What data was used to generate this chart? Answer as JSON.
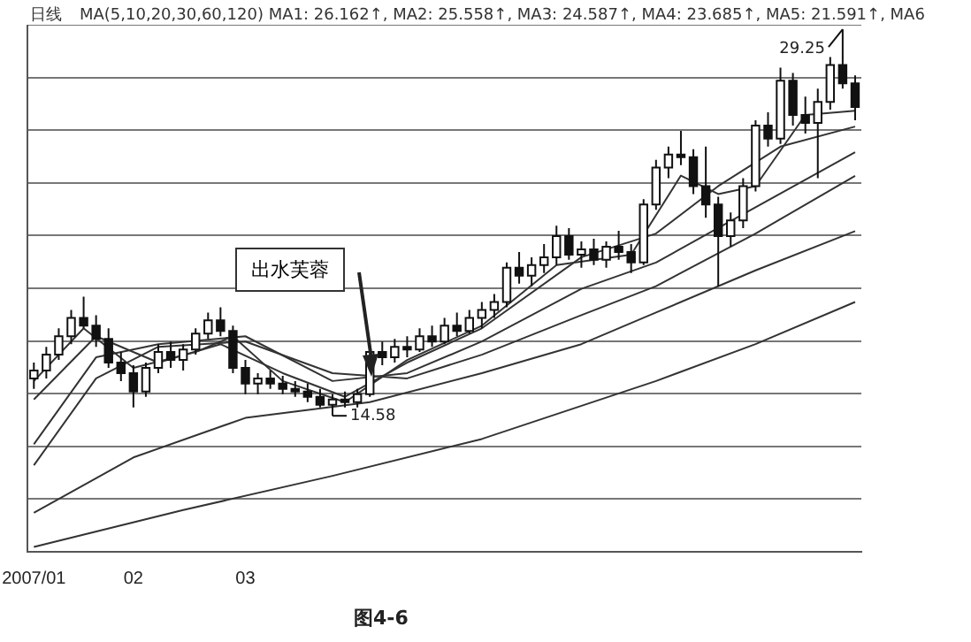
{
  "chart_data": {
    "type": "candlestick",
    "title": "日线",
    "categories": [
      "2007/01",
      null,
      null,
      null,
      null,
      null,
      null,
      null,
      "02",
      null,
      null,
      null,
      null,
      null,
      null,
      null,
      null,
      "03",
      null,
      null,
      null,
      null,
      null,
      null,
      null,
      null,
      null,
      null,
      null,
      null,
      null,
      null,
      null,
      null,
      null,
      null,
      null,
      null,
      null,
      null,
      null,
      null,
      null,
      null,
      null,
      null,
      null,
      null,
      null,
      null,
      null,
      null,
      null,
      null,
      null,
      null,
      null,
      null,
      null,
      null,
      null,
      null,
      null,
      null,
      null,
      null,
      null
    ],
    "ohlc": [
      [
        16.0,
        16.6,
        15.6,
        16.3
      ],
      [
        16.3,
        17.2,
        16.0,
        16.9
      ],
      [
        16.9,
        17.9,
        16.7,
        17.6
      ],
      [
        17.6,
        18.6,
        17.3,
        18.3
      ],
      [
        18.3,
        19.1,
        17.9,
        18.0
      ],
      [
        18.0,
        18.4,
        17.2,
        17.5
      ],
      [
        17.5,
        17.9,
        16.4,
        16.6
      ],
      [
        16.6,
        17.0,
        15.9,
        16.2
      ],
      [
        16.2,
        16.5,
        14.9,
        15.5
      ],
      [
        15.5,
        16.6,
        15.3,
        16.4
      ],
      [
        16.4,
        17.3,
        16.2,
        17.0
      ],
      [
        17.0,
        17.4,
        16.4,
        16.7
      ],
      [
        16.7,
        17.3,
        16.3,
        17.1
      ],
      [
        17.1,
        17.9,
        16.9,
        17.7
      ],
      [
        17.7,
        18.5,
        17.5,
        18.2
      ],
      [
        18.2,
        18.7,
        17.6,
        17.8
      ],
      [
        17.8,
        18.0,
        16.2,
        16.4
      ],
      [
        16.4,
        16.7,
        15.4,
        15.8
      ],
      [
        15.8,
        16.2,
        15.4,
        16.0
      ],
      [
        16.0,
        16.3,
        15.6,
        15.8
      ],
      [
        15.8,
        16.1,
        15.4,
        15.6
      ],
      [
        15.6,
        15.9,
        15.3,
        15.5
      ],
      [
        15.5,
        15.8,
        15.1,
        15.3
      ],
      [
        15.3,
        15.6,
        14.9,
        15.0
      ],
      [
        15.0,
        15.4,
        14.58,
        15.2
      ],
      [
        15.2,
        15.5,
        14.9,
        15.1
      ],
      [
        15.1,
        15.6,
        14.9,
        15.4
      ],
      [
        15.4,
        17.2,
        15.3,
        17.0
      ],
      [
        17.0,
        17.4,
        16.5,
        16.8
      ],
      [
        16.8,
        17.5,
        16.6,
        17.2
      ],
      [
        17.2,
        17.6,
        16.8,
        17.1
      ],
      [
        17.1,
        17.9,
        17.0,
        17.6
      ],
      [
        17.6,
        18.0,
        17.2,
        17.4
      ],
      [
        17.4,
        18.3,
        17.3,
        18.0
      ],
      [
        18.0,
        18.5,
        17.6,
        17.8
      ],
      [
        17.8,
        18.6,
        17.7,
        18.3
      ],
      [
        18.3,
        18.9,
        17.9,
        18.6
      ],
      [
        18.6,
        19.2,
        18.3,
        18.9
      ],
      [
        18.9,
        20.4,
        18.7,
        20.2
      ],
      [
        20.2,
        20.8,
        19.6,
        19.9
      ],
      [
        19.9,
        20.6,
        19.5,
        20.3
      ],
      [
        20.3,
        21.1,
        20.0,
        20.6
      ],
      [
        20.6,
        21.8,
        20.3,
        21.4
      ],
      [
        21.4,
        21.7,
        20.5,
        20.7
      ],
      [
        20.7,
        21.2,
        20.2,
        20.9
      ],
      [
        20.9,
        21.3,
        20.3,
        20.5
      ],
      [
        20.5,
        21.2,
        20.2,
        21.0
      ],
      [
        21.0,
        21.6,
        20.5,
        20.8
      ],
      [
        20.8,
        21.1,
        20.0,
        20.4
      ],
      [
        20.4,
        22.8,
        20.3,
        22.6
      ],
      [
        22.6,
        24.3,
        22.4,
        24.0
      ],
      [
        24.0,
        24.8,
        23.6,
        24.5
      ],
      [
        24.5,
        25.4,
        24.1,
        24.4
      ],
      [
        24.4,
        24.7,
        23.0,
        23.3
      ],
      [
        23.3,
        24.8,
        22.1,
        22.6
      ],
      [
        22.6,
        22.9,
        19.5,
        21.4
      ],
      [
        21.4,
        22.3,
        21.0,
        22.0
      ],
      [
        22.0,
        23.6,
        21.7,
        23.3
      ],
      [
        23.3,
        25.8,
        23.1,
        25.6
      ],
      [
        25.6,
        26.1,
        24.8,
        25.1
      ],
      [
        25.1,
        27.8,
        24.9,
        27.3
      ],
      [
        27.3,
        27.6,
        25.6,
        26.0
      ],
      [
        26.0,
        26.7,
        25.3,
        25.7
      ],
      [
        25.7,
        27.0,
        23.6,
        26.5
      ],
      [
        26.5,
        28.2,
        26.2,
        27.9
      ],
      [
        27.9,
        29.25,
        27.0,
        27.2
      ],
      [
        27.2,
        27.5,
        25.8,
        26.3
      ]
    ],
    "series": [
      {
        "type": "line",
        "color": "#333333",
        "values": [
          15.9,
          null,
          null,
          null,
          17.9,
          null,
          null,
          null,
          16.4,
          null,
          null,
          null,
          null,
          17.0,
          null,
          null,
          17.6,
          null,
          null,
          null,
          15.9,
          null,
          null,
          null,
          null,
          15.1,
          null,
          null,
          null,
          null,
          16.7,
          null,
          null,
          null,
          null,
          null,
          18.0,
          null,
          null,
          null,
          null,
          null,
          20.3,
          null,
          null,
          null,
          null,
          null,
          20.7,
          null,
          null,
          null,
          23.7,
          null,
          null,
          23.0,
          null,
          null,
          23.3,
          null,
          null,
          null,
          26.0,
          null,
          null,
          null,
          26.16
        ]
      },
      {
        "type": "line",
        "color": "#333333",
        "values": [
          15.2,
          null,
          null,
          null,
          null,
          17.6,
          null,
          null,
          null,
          null,
          16.6,
          null,
          null,
          null,
          null,
          17.3,
          null,
          null,
          null,
          null,
          16.2,
          null,
          null,
          null,
          null,
          15.3,
          null,
          null,
          null,
          null,
          16.6,
          null,
          null,
          null,
          null,
          null,
          17.9,
          null,
          null,
          null,
          null,
          null,
          null,
          null,
          20.6,
          null,
          null,
          null,
          null,
          null,
          21.5,
          null,
          null,
          null,
          null,
          23.3,
          null,
          null,
          null,
          null,
          24.8,
          null,
          null,
          null,
          null,
          null,
          25.56
        ]
      },
      {
        "type": "line",
        "color": "#333333",
        "values": [
          13.5,
          null,
          null,
          null,
          null,
          16.8,
          null,
          null,
          null,
          null,
          17.3,
          null,
          null,
          null,
          null,
          null,
          null,
          17.6,
          null,
          null,
          null,
          null,
          null,
          null,
          15.9,
          null,
          null,
          null,
          null,
          null,
          16.2,
          null,
          null,
          null,
          null,
          null,
          17.4,
          null,
          null,
          null,
          null,
          null,
          null,
          null,
          19.4,
          null,
          null,
          null,
          null,
          null,
          20.4,
          null,
          null,
          null,
          null,
          null,
          null,
          null,
          22.5,
          null,
          null,
          null,
          null,
          null,
          null,
          null,
          24.59
        ]
      },
      {
        "type": "line",
        "color": "#333333",
        "values": [
          12.7,
          null,
          null,
          null,
          null,
          16.0,
          null,
          null,
          null,
          null,
          17.2,
          null,
          null,
          null,
          null,
          null,
          null,
          17.4,
          null,
          null,
          null,
          null,
          null,
          null,
          16.2,
          null,
          null,
          null,
          null,
          null,
          16.0,
          null,
          null,
          null,
          null,
          null,
          16.9,
          null,
          null,
          null,
          null,
          null,
          null,
          null,
          18.4,
          null,
          null,
          null,
          null,
          null,
          19.5,
          null,
          null,
          null,
          null,
          null,
          null,
          null,
          21.5,
          null,
          null,
          null,
          null,
          null,
          null,
          null,
          23.69
        ]
      },
      {
        "type": "line",
        "color": "#333333",
        "values": [
          10.9,
          null,
          null,
          null,
          null,
          null,
          null,
          null,
          13.0,
          null,
          null,
          null,
          null,
          null,
          null,
          null,
          null,
          14.5,
          null,
          null,
          null,
          null,
          null,
          null,
          null,
          null,
          null,
          15.1,
          null,
          null,
          null,
          null,
          null,
          null,
          null,
          null,
          16.2,
          null,
          null,
          null,
          null,
          null,
          null,
          null,
          17.3,
          null,
          null,
          null,
          null,
          null,
          18.5,
          null,
          null,
          null,
          null,
          null,
          null,
          null,
          20.1,
          null,
          null,
          null,
          null,
          null,
          null,
          null,
          21.59
        ]
      },
      {
        "type": "line",
        "color": "#333333",
        "values": [
          9.6,
          null,
          null,
          null,
          null,
          null,
          null,
          null,
          null,
          null,
          null,
          null,
          11.0,
          null,
          null,
          null,
          null,
          null,
          null,
          null,
          null,
          null,
          null,
          null,
          12.3,
          null,
          null,
          null,
          null,
          null,
          null,
          null,
          null,
          null,
          null,
          null,
          13.7,
          null,
          null,
          null,
          null,
          null,
          null,
          null,
          null,
          null,
          null,
          null,
          null,
          null,
          15.9,
          null,
          null,
          null,
          null,
          null,
          null,
          null,
          17.3,
          null,
          null,
          null,
          null,
          null,
          null,
          null,
          18.9
        ]
      }
    ],
    "annotations": [
      "MA(5,10,20,30,60,120) MA1: 26.162↑, MA2: 25.558↑, MA3: 24.587↑, MA4: 23.685↑, MA5: 21.591↑, MA6",
      "29.25",
      "14.58",
      "出水芙蓉",
      "图4-6"
    ],
    "grid": "y",
    "tick_labels": "x",
    "marker": "none",
    "line_style": "solid",
    "legend": false
  }
}
